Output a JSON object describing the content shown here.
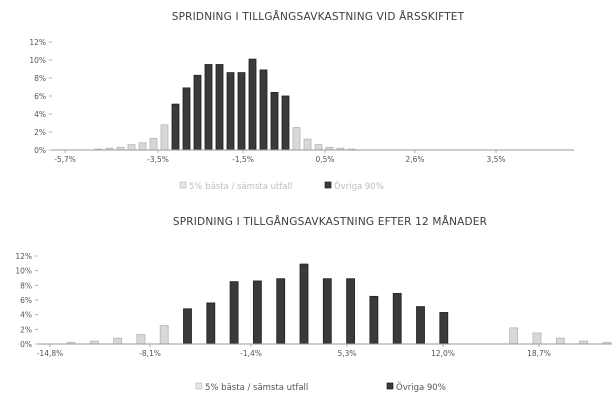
{
  "chart_data": [
    {
      "type": "bar",
      "title": "SPRIDNING I TILLGÅNGSAVKASTNING VID ÅRSSKIFTET",
      "xlabel": "",
      "ylabel": "",
      "ylim": [
        0,
        12
      ],
      "yticks": [
        "0%",
        "2%",
        "4%",
        "6%",
        "8%",
        "10%",
        "12%"
      ],
      "xtick_labels": [
        "-5,7%",
        "-3,5%",
        "-1,5%",
        "0,5%",
        "2,6%",
        "3,5%"
      ],
      "grid": false,
      "legend": {
        "placement": "bottom",
        "entries": [
          "5% bästa / sämsta utfall",
          "Övriga 90%"
        ]
      },
      "series": [
        {
          "name": "5% bästa / sämsta utfall",
          "color": "#d8d8d8",
          "values": [
            0.1,
            0.2,
            0.3,
            0.6,
            0.8,
            1.3,
            2.8,
            0,
            0,
            0,
            0,
            0,
            0,
            0,
            0,
            0,
            0,
            0,
            2.5,
            1.2,
            0.6,
            0.3,
            0.2,
            0.1
          ]
        },
        {
          "name": "Övriga 90%",
          "color": "#3a3a3a",
          "values": [
            0,
            0,
            0,
            0,
            0,
            0,
            0,
            5.1,
            6.9,
            8.3,
            9.5,
            9.5,
            8.6,
            8.6,
            10.1,
            8.9,
            6.4,
            6.0,
            0,
            0,
            0,
            0,
            0,
            0
          ]
        }
      ]
    },
    {
      "type": "bar",
      "title": "SPRIDNING I TILLGÅNGSAVKASTNING EFTER 12 MÅNADER",
      "xlabel": "",
      "ylabel": "",
      "ylim": [
        0,
        12
      ],
      "yticks": [
        "0%",
        "2%",
        "4%",
        "6%",
        "8%",
        "10%",
        "12%"
      ],
      "xtick_labels": [
        "-14,8%",
        "-8,1%",
        "-1,4%",
        "5,3%",
        "12,0%",
        "18,7%"
      ],
      "grid": false,
      "legend": {
        "placement": "bottom",
        "entries": [
          "5% bästa / sämsta utfall",
          "Övriga 90%"
        ]
      },
      "series": [
        {
          "name": "5% bästa / sämsta utfall",
          "color": "#d8d8d8",
          "values": [
            0.2,
            0.4,
            0.8,
            1.3,
            2.5,
            0,
            0,
            0,
            0,
            0,
            0,
            0,
            0,
            0,
            0,
            0,
            0,
            0,
            0,
            2.2,
            1.5,
            0.8,
            0.4,
            0.2,
            0.1
          ]
        },
        {
          "name": "Övriga 90%",
          "color": "#3a3a3a",
          "values": [
            0,
            0,
            0,
            0,
            0,
            4.8,
            5.6,
            8.5,
            8.6,
            8.9,
            10.9,
            8.9,
            8.9,
            6.5,
            6.9,
            5.1,
            4.3,
            0,
            0,
            0,
            0,
            0,
            0,
            0,
            0
          ]
        }
      ]
    }
  ]
}
